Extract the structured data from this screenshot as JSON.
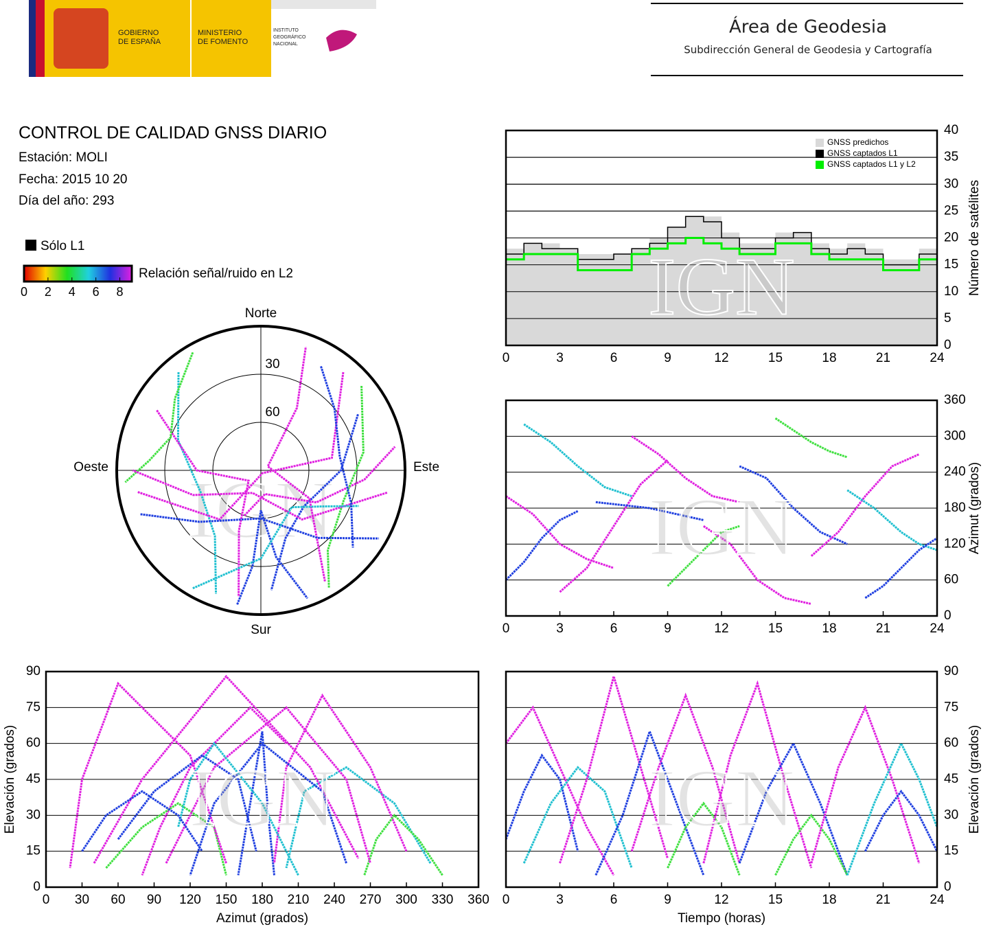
{
  "header": {
    "logos": [
      "GOBIERNO DE ESPAÑA",
      "MINISTERIO DE FOMENTO",
      "INSTITUTO GEOGRÁFICO NACIONAL"
    ],
    "title": "Área de Geodesia",
    "subtitle": "Subdirección General de Geodesia y Cartografía"
  },
  "report": {
    "title": "CONTROL DE CALIDAD GNSS DIARIO",
    "station": "Estación: MOLI",
    "date": "Fecha: 2015 10 20",
    "doy": "Día del año: 293",
    "legend_l1": "Sólo L1",
    "colorbar_label": "Relación señal/ruido en L2",
    "colorbar_lim": [
      0,
      9
    ],
    "colorbar_ticks": [
      0,
      2,
      4,
      6,
      8
    ]
  },
  "watermark": "IGN",
  "passes": [
    {
      "color": "#e020e0",
      "t": [
        0,
        1.5,
        3,
        4.5,
        6
      ],
      "az": [
        200,
        170,
        120,
        95,
        80
      ],
      "el": [
        60,
        75,
        50,
        25,
        5
      ]
    },
    {
      "color": "#2040e0",
      "t": [
        0,
        1,
        2,
        3,
        4
      ],
      "az": [
        60,
        90,
        130,
        160,
        175
      ],
      "el": [
        20,
        40,
        55,
        45,
        15
      ]
    },
    {
      "color": "#20c0d0",
      "t": [
        1,
        2.5,
        4,
        5.5,
        7
      ],
      "az": [
        320,
        290,
        250,
        215,
        200
      ],
      "el": [
        10,
        35,
        50,
        40,
        8
      ]
    },
    {
      "color": "#e020e0",
      "t": [
        3,
        4.5,
        6,
        7.5,
        9
      ],
      "az": [
        40,
        80,
        150,
        220,
        260
      ],
      "el": [
        10,
        45,
        88,
        50,
        12
      ]
    },
    {
      "color": "#2040e0",
      "t": [
        5,
        6.5,
        8,
        9.5,
        11
      ],
      "az": [
        190,
        185,
        180,
        170,
        160
      ],
      "el": [
        5,
        30,
        65,
        35,
        5
      ]
    },
    {
      "color": "#e020e0",
      "t": [
        7,
        8.5,
        10,
        11.5,
        13
      ],
      "az": [
        300,
        270,
        230,
        200,
        190
      ],
      "el": [
        15,
        50,
        80,
        50,
        10
      ]
    },
    {
      "color": "#40e040",
      "t": [
        9,
        10,
        11,
        12,
        13
      ],
      "az": [
        50,
        80,
        110,
        140,
        150
      ],
      "el": [
        8,
        25,
        35,
        25,
        5
      ]
    },
    {
      "color": "#e020e0",
      "t": [
        11,
        12.5,
        14,
        15.5,
        17
      ],
      "az": [
        150,
        120,
        60,
        30,
        20
      ],
      "el": [
        10,
        55,
        85,
        45,
        8
      ]
    },
    {
      "color": "#2040e0",
      "t": [
        13,
        14.5,
        16,
        17.5,
        19
      ],
      "az": [
        250,
        230,
        180,
        140,
        120
      ],
      "el": [
        10,
        40,
        60,
        35,
        5
      ]
    },
    {
      "color": "#40e040",
      "t": [
        15,
        16,
        17,
        18,
        19
      ],
      "az": [
        330,
        310,
        290,
        275,
        265
      ],
      "el": [
        5,
        20,
        30,
        20,
        5
      ]
    },
    {
      "color": "#e020e0",
      "t": [
        17,
        18.5,
        20,
        21.5,
        23
      ],
      "az": [
        100,
        140,
        200,
        250,
        270
      ],
      "el": [
        10,
        50,
        75,
        45,
        10
      ]
    },
    {
      "color": "#20c0d0",
      "t": [
        19,
        20.5,
        22,
        23,
        24
      ],
      "az": [
        210,
        180,
        140,
        120,
        110
      ],
      "el": [
        5,
        35,
        60,
        45,
        25
      ]
    },
    {
      "color": "#2040e0",
      "t": [
        20,
        21,
        22,
        23,
        24
      ],
      "az": [
        30,
        50,
        80,
        110,
        130
      ],
      "el": [
        15,
        30,
        40,
        30,
        15
      ]
    }
  ],
  "chart_data": [
    {
      "type": "line",
      "y_label": "Número de satélites",
      "grid": true,
      "x": [
        0,
        1,
        2,
        3,
        4,
        5,
        6,
        7,
        8,
        9,
        10,
        11,
        12,
        13,
        14,
        15,
        16,
        17,
        18,
        19,
        20,
        21,
        22,
        23,
        24
      ],
      "series": [
        {
          "name": "GNSS predichos",
          "color": "#d9d9d9",
          "values": [
            18,
            19,
            19,
            18,
            17,
            17,
            17,
            18,
            20,
            22,
            24,
            24,
            21,
            19,
            19,
            21,
            21,
            19,
            18,
            19,
            18,
            16,
            16,
            18,
            17
          ]
        },
        {
          "name": "GNSS captados L1",
          "color": "#000000",
          "values": [
            17,
            19,
            18,
            18,
            16,
            16,
            17,
            18,
            19,
            22,
            24,
            23,
            20,
            18,
            18,
            20,
            21,
            18,
            17,
            18,
            17,
            15,
            15,
            17,
            17
          ]
        },
        {
          "name": "GNSS captados L1 y L2",
          "color": "#00ee00",
          "values": [
            16,
            17,
            17,
            17,
            14,
            14,
            14,
            17,
            18,
            19,
            20,
            19,
            18,
            17,
            17,
            19,
            19,
            17,
            16,
            16,
            16,
            14,
            14,
            16,
            16
          ]
        }
      ],
      "xlim": [
        0,
        24
      ],
      "xticks": [
        0,
        3,
        6,
        9,
        12,
        15,
        18,
        21,
        24
      ],
      "ylim": [
        0,
        40
      ],
      "yticks": [
        0,
        5,
        10,
        15,
        20,
        25,
        30,
        35,
        40
      ]
    },
    {
      "type": "polar",
      "rticks": [
        30,
        60
      ],
      "north": "Norte",
      "south": "Sur",
      "east": "Este",
      "west": "Oeste"
    },
    {
      "type": "scatter",
      "y_label": "Azimut (grados)",
      "grid": true,
      "xlim": [
        0,
        24
      ],
      "xticks": [
        0,
        3,
        6,
        9,
        12,
        15,
        18,
        21,
        24
      ],
      "ylim": [
        0,
        360
      ],
      "yticks": [
        0,
        60,
        120,
        180,
        240,
        300,
        360
      ]
    },
    {
      "type": "scatter",
      "x_label": "Azimut (grados)",
      "y_label": "Elevación (grados)",
      "grid": true,
      "xlim": [
        0,
        360
      ],
      "xticks": [
        0,
        30,
        60,
        90,
        120,
        150,
        180,
        210,
        240,
        270,
        300,
        330,
        360
      ],
      "ylim": [
        0,
        90
      ],
      "yticks": [
        0,
        15,
        30,
        45,
        60,
        75,
        90
      ]
    },
    {
      "type": "scatter",
      "x_label": "Tiempo (horas)",
      "y_label": "Elevación (grados)",
      "grid": true,
      "xlim": [
        0,
        24
      ],
      "xticks": [
        0,
        3,
        6,
        9,
        12,
        15,
        18,
        21,
        24
      ],
      "ylim": [
        0,
        90
      ],
      "yticks": [
        0,
        15,
        30,
        45,
        60,
        75,
        90
      ]
    }
  ]
}
